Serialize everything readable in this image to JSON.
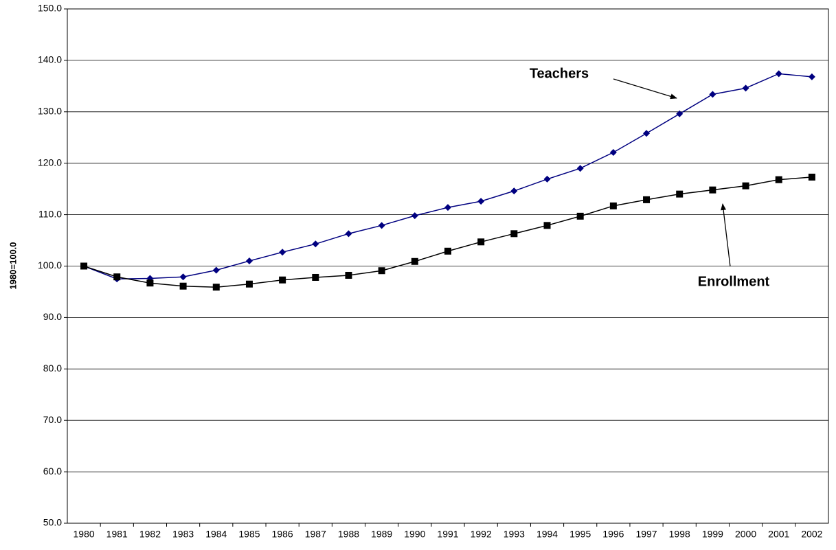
{
  "chart_data": {
    "type": "line",
    "y_label": "1980=100.0",
    "categories": [
      "1980",
      "1981",
      "1982",
      "1983",
      "1984",
      "1985",
      "1986",
      "1987",
      "1988",
      "1989",
      "1990",
      "1991",
      "1992",
      "1993",
      "1994",
      "1995",
      "1996",
      "1997",
      "1998",
      "1999",
      "2000",
      "2001",
      "2002"
    ],
    "series": [
      {
        "name": "Teachers",
        "color": "#000080",
        "marker": "diamond",
        "values": [
          100.0,
          97.5,
          97.6,
          97.9,
          99.2,
          101.0,
          102.7,
          104.3,
          106.3,
          107.9,
          109.8,
          111.4,
          112.6,
          114.6,
          116.9,
          119.0,
          122.1,
          125.8,
          129.6,
          133.4,
          134.6,
          137.4,
          136.8
        ]
      },
      {
        "name": "Enrollment",
        "color": "#000000",
        "marker": "square",
        "values": [
          100.0,
          97.9,
          96.7,
          96.1,
          95.9,
          96.5,
          97.3,
          97.8,
          98.2,
          99.1,
          100.9,
          102.9,
          104.7,
          106.3,
          107.9,
          109.7,
          111.7,
          112.9,
          114.0,
          114.8,
          115.6,
          116.8,
          117.3
        ]
      }
    ],
    "ylim": [
      50,
      150
    ],
    "yticks": [
      {
        "value": 50,
        "label": "50.0"
      },
      {
        "value": 60,
        "label": "60.0"
      },
      {
        "value": 70,
        "label": "70.0"
      },
      {
        "value": 80,
        "label": "80.0"
      },
      {
        "value": 90,
        "label": "90.0"
      },
      {
        "value": 100,
        "label": "100.0"
      },
      {
        "value": 110,
        "label": "110.0"
      },
      {
        "value": 120,
        "label": "120.0"
      },
      {
        "value": 130,
        "label": "130.0"
      },
      {
        "value": 140,
        "label": "140.0"
      },
      {
        "value": 150,
        "label": "150.0"
      }
    ],
    "grid": true
  }
}
